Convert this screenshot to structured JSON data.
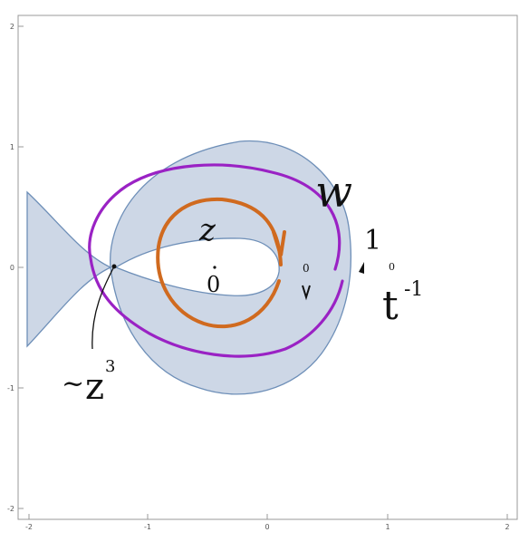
{
  "axes": {
    "x_ticks": [
      "-2",
      "-1",
      "0",
      "1",
      "2"
    ],
    "y_ticks": [
      "2",
      "1",
      "0",
      "-1",
      "-2"
    ],
    "xlim": [
      -2,
      2
    ],
    "ylim": [
      -2,
      2
    ]
  },
  "annotations": {
    "w_label": "w",
    "z_label": "z",
    "zero_label": "0",
    "one_label": "1",
    "t_inv_base": "t",
    "t_inv_exp": "-1",
    "zcubed_prefix": "~",
    "zcubed_base": "z",
    "zcubed_exp": "3"
  },
  "colors": {
    "region_fill": "#cdd7e6",
    "region_stroke": "#6e8fb8",
    "w_curve": "#9a22c4",
    "z_curve": "#d06a1f",
    "ink": "#111111",
    "frame": "#999999"
  }
}
